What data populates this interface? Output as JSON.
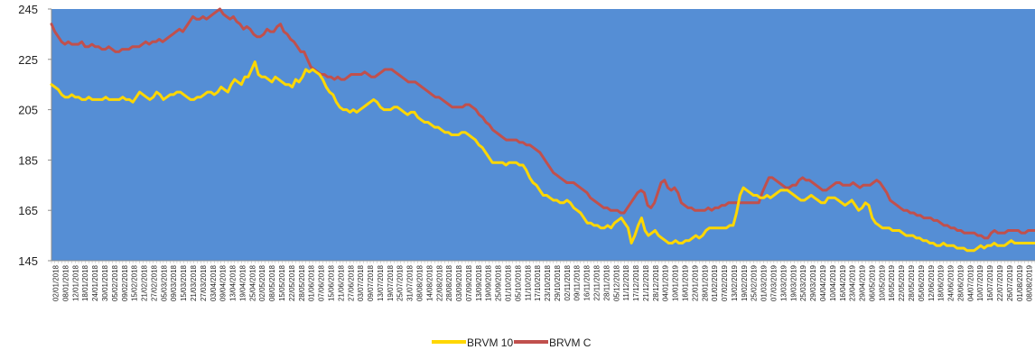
{
  "chart_data": {
    "type": "line",
    "title": "",
    "xlabel": "",
    "ylabel": "",
    "ylim": [
      145,
      245
    ],
    "yticks": [
      145,
      165,
      185,
      205,
      225,
      245
    ],
    "grid": false,
    "legend_position": "bottom",
    "plot_background": "#558ED5",
    "x_tick_labels": [
      "02/01/2018",
      "08/01/2018",
      "12/01/2018",
      "18/01/2018",
      "24/01/2018",
      "30/01/2018",
      "05/02/2018",
      "09/02/2018",
      "15/02/2018",
      "21/02/2018",
      "27/02/2018",
      "05/03/2018",
      "09/03/2018",
      "15/03/2018",
      "21/03/2018",
      "27/03/2018",
      "03/04/2018",
      "09/04/2018",
      "13/04/2018",
      "19/04/2018",
      "25/04/2018",
      "02/05/2018",
      "08/05/2018",
      "15/05/2018",
      "22/05/2018",
      "28/05/2018",
      "01/06/2018",
      "07/06/2018",
      "15/06/2018",
      "21/06/2018",
      "27/06/2018",
      "03/07/2018",
      "09/07/2018",
      "13/07/2018",
      "19/07/2018",
      "25/07/2018",
      "31/07/2018",
      "08/08/2018",
      "14/08/2018",
      "22/08/2018",
      "28/08/2018",
      "03/09/2018",
      "07/09/2018",
      "13/09/2018",
      "19/09/2018",
      "25/09/2018",
      "01/10/2018",
      "05/10/2018",
      "11/10/2018",
      "17/10/2018",
      "23/10/2018",
      "29/10/2018",
      "02/11/2018",
      "09/11/2018",
      "16/11/2018",
      "22/11/2018",
      "28/11/2018",
      "05/12/2018",
      "11/12/2018",
      "17/12/2018",
      "21/12/2018",
      "28/12/2018",
      "04/01/2019",
      "10/01/2019",
      "16/01/2019",
      "22/01/2019",
      "28/01/2019",
      "01/02/2019",
      "07/02/2019",
      "13/02/2019",
      "19/02/2019",
      "25/02/2019",
      "01/03/2019",
      "07/03/2019",
      "13/03/2019",
      "19/03/2019",
      "25/03/2019",
      "29/03/2019",
      "04/04/2019",
      "10/04/2019",
      "16/04/2019",
      "23/04/2019",
      "29/04/2019",
      "06/05/2019",
      "10/05/2019",
      "16/05/2019",
      "22/05/2019",
      "28/05/2019",
      "05/06/2019",
      "12/06/2019",
      "18/06/2019",
      "24/06/2019",
      "28/06/2019",
      "04/07/2019",
      "10/07/2019",
      "16/07/2019",
      "22/07/2019",
      "26/07/2019",
      "01/08/2019",
      "08/08/2019"
    ],
    "series": [
      {
        "name": "BRVM 10",
        "color": "#FFD700",
        "values": [
          215,
          214,
          213,
          211,
          210,
          210,
          211,
          210,
          210,
          209,
          209,
          210,
          209,
          209,
          209,
          209,
          210,
          209,
          209,
          209,
          209,
          210,
          209,
          209,
          208,
          210,
          212,
          211,
          210,
          209,
          210,
          212,
          211,
          209,
          210,
          211,
          211,
          212,
          212,
          211,
          210,
          209,
          209,
          210,
          210,
          211,
          212,
          212,
          211,
          212,
          214,
          213,
          212,
          215,
          217,
          216,
          215,
          218,
          218,
          221,
          224,
          219,
          218,
          218,
          217,
          216,
          218,
          217,
          216,
          215,
          215,
          214,
          217,
          216,
          218,
          221,
          220,
          221,
          220,
          219,
          217,
          214,
          212,
          211,
          208,
          206,
          205,
          205,
          204,
          205,
          204,
          205,
          206,
          207,
          208,
          209,
          208,
          206,
          205,
          205,
          205,
          206,
          206,
          205,
          204,
          203,
          204,
          204,
          202,
          201,
          200,
          200,
          199,
          198,
          198,
          197,
          196,
          196,
          195,
          195,
          195,
          196,
          196,
          195,
          194,
          193,
          191,
          190,
          188,
          186,
          184,
          184,
          184,
          184,
          183,
          184,
          184,
          184,
          183,
          183,
          181,
          178,
          176,
          175,
          173,
          171,
          171,
          170,
          169,
          169,
          168,
          168,
          169,
          168,
          166,
          165,
          164,
          162,
          160,
          160,
          159,
          159,
          158,
          158,
          159,
          158,
          160,
          161,
          162,
          160,
          158,
          152,
          155,
          159,
          162,
          157,
          155,
          156,
          157,
          155,
          154,
          153,
          152,
          152,
          153,
          152,
          152,
          153,
          153,
          154,
          155,
          154,
          155,
          157,
          158,
          158,
          158,
          158,
          158,
          158,
          159,
          159,
          164,
          171,
          174,
          173,
          172,
          171,
          171,
          170,
          170,
          171,
          170,
          171,
          172,
          173,
          173,
          173,
          172,
          171,
          170,
          169,
          169,
          170,
          171,
          170,
          169,
          168,
          168,
          170,
          170,
          170,
          169,
          168,
          167,
          168,
          169,
          167,
          165,
          166,
          168,
          167,
          162,
          160,
          159,
          158,
          158,
          158,
          157,
          157,
          157,
          156,
          155,
          155,
          155,
          154,
          154,
          153,
          153,
          152,
          152,
          151,
          151,
          152,
          151,
          151,
          151,
          150,
          150,
          150,
          149,
          149,
          149,
          150,
          151,
          150,
          151,
          151,
          152,
          151,
          151,
          151,
          152,
          153,
          152,
          152,
          152,
          152,
          152,
          152,
          152
        ]
      },
      {
        "name": "BRVM C",
        "color": "#C0504D",
        "values": [
          239,
          236,
          234,
          232,
          231,
          232,
          231,
          231,
          231,
          232,
          230,
          230,
          231,
          230,
          230,
          229,
          229,
          230,
          229,
          228,
          228,
          229,
          229,
          229,
          230,
          230,
          230,
          231,
          232,
          231,
          232,
          232,
          233,
          232,
          233,
          234,
          235,
          236,
          237,
          236,
          238,
          240,
          242,
          241,
          241,
          242,
          241,
          242,
          243,
          244,
          245,
          243,
          242,
          241,
          242,
          240,
          239,
          237,
          238,
          237,
          235,
          234,
          234,
          235,
          237,
          236,
          236,
          238,
          239,
          236,
          235,
          233,
          232,
          230,
          228,
          228,
          225,
          222,
          221,
          220,
          219,
          219,
          218,
          218,
          217,
          218,
          217,
          217,
          218,
          219,
          219,
          219,
          219,
          220,
          219,
          218,
          218,
          219,
          220,
          221,
          221,
          221,
          220,
          219,
          218,
          217,
          216,
          216,
          216,
          215,
          214,
          213,
          212,
          211,
          210,
          210,
          209,
          208,
          207,
          206,
          206,
          206,
          206,
          207,
          207,
          206,
          205,
          203,
          202,
          200,
          199,
          197,
          196,
          195,
          194,
          193,
          193,
          193,
          193,
          192,
          192,
          191,
          191,
          190,
          189,
          188,
          186,
          184,
          182,
          180,
          179,
          178,
          177,
          176,
          176,
          176,
          175,
          174,
          173,
          172,
          170,
          169,
          168,
          167,
          166,
          166,
          165,
          165,
          165,
          164,
          164,
          166,
          168,
          170,
          172,
          173,
          172,
          167,
          166,
          168,
          172,
          176,
          177,
          174,
          173,
          174,
          172,
          168,
          167,
          166,
          166,
          165,
          165,
          165,
          165,
          166,
          165,
          166,
          166,
          167,
          167,
          168,
          168,
          168,
          168,
          168,
          168,
          168,
          168,
          168,
          168,
          172,
          175,
          178,
          178,
          177,
          176,
          175,
          174,
          174,
          175,
          175,
          177,
          178,
          177,
          177,
          176,
          175,
          174,
          173,
          173,
          174,
          175,
          176,
          176,
          175,
          175,
          175,
          176,
          175,
          174,
          175,
          175,
          175,
          176,
          177,
          176,
          174,
          172,
          169,
          168,
          167,
          166,
          165,
          165,
          164,
          164,
          163,
          163,
          162,
          162,
          162,
          161,
          161,
          160,
          159,
          159,
          158,
          158,
          157,
          157,
          156,
          156,
          156,
          156,
          155,
          155,
          154,
          154,
          156,
          157,
          156,
          156,
          156,
          157,
          157,
          157,
          157,
          156,
          156,
          157,
          157,
          157
        ]
      }
    ]
  }
}
